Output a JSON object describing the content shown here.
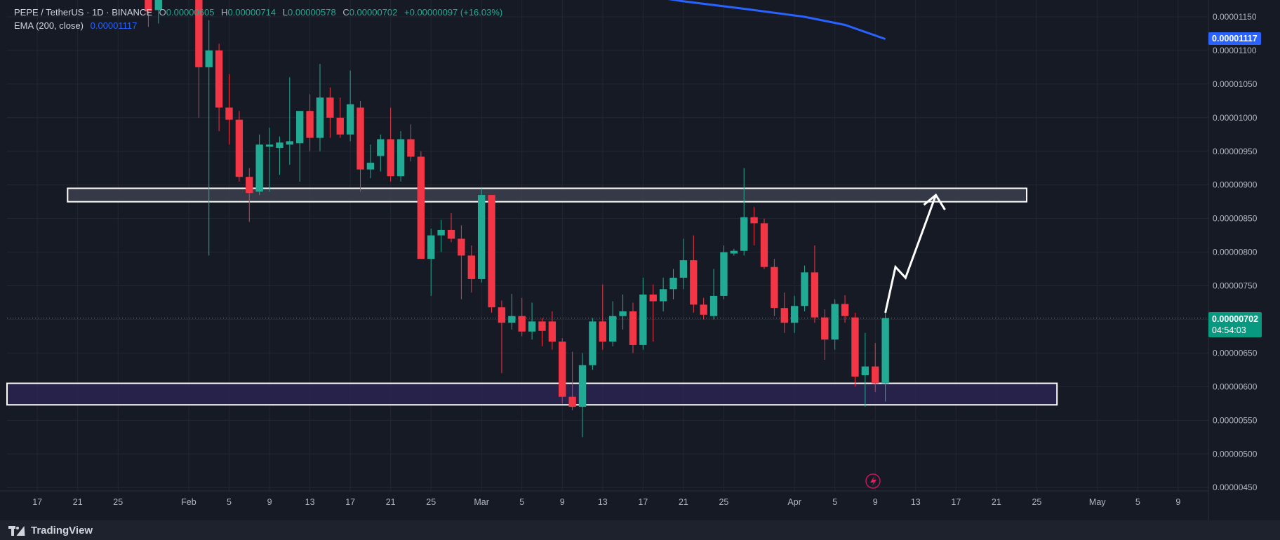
{
  "legend": {
    "symbol": "PEPE / TetherUS · 1D · BINANCE",
    "open_label": "O",
    "open_value": "0.00000605",
    "high_label": "H",
    "high_value": "0.00000714",
    "low_label": "L",
    "low_value": "0.00000578",
    "close_label": "C",
    "close_value": "0.00000702",
    "change_value": "+0.00000097 (+16.03%)",
    "ema_label": "EMA (200, close)",
    "ema_value": "0.00001117"
  },
  "price_tags": {
    "ema_tag": "0.00001117",
    "last_price_tag": "0.00000702",
    "countdown": "04:54:03"
  },
  "footer": {
    "brand": "TradingView"
  },
  "colors": {
    "background": "#161a25",
    "up": "#22ab94",
    "down": "#f23645",
    "ema": "#2962ff",
    "grid": "#232733",
    "zone_fill_upper": "#3c3f4e",
    "zone_fill_lower": "#2a2550",
    "projection": "#ffffff"
  },
  "chart_data": {
    "type": "candlestick",
    "title": "PEPE / TetherUS · 1D · BINANCE",
    "y_ticks": [
      "0.00001150",
      "0.00001100",
      "0.00001050",
      "0.00001000",
      "0.00000950",
      "0.00000900",
      "0.00000850",
      "0.00000800",
      "0.00000750",
      "0.00000700",
      "0.00000650",
      "0.00000600",
      "0.00000550",
      "0.00000500",
      "0.00000450"
    ],
    "x_ticks": [
      {
        "day": "2024-01-17",
        "label": "17"
      },
      {
        "day": "2024-01-21",
        "label": "21"
      },
      {
        "day": "2024-01-25",
        "label": "25"
      },
      {
        "day": "2024-02-01",
        "label": "Feb"
      },
      {
        "day": "2024-02-05",
        "label": "5"
      },
      {
        "day": "2024-02-09",
        "label": "9"
      },
      {
        "day": "2024-02-13",
        "label": "13"
      },
      {
        "day": "2024-02-17",
        "label": "17"
      },
      {
        "day": "2024-02-21",
        "label": "21"
      },
      {
        "day": "2024-02-25",
        "label": "25"
      },
      {
        "day": "2024-03-01",
        "label": "Mar"
      },
      {
        "day": "2024-03-05",
        "label": "5"
      },
      {
        "day": "2024-03-09",
        "label": "9"
      },
      {
        "day": "2024-03-13",
        "label": "13"
      },
      {
        "day": "2024-03-17",
        "label": "17"
      },
      {
        "day": "2024-03-21",
        "label": "21"
      },
      {
        "day": "2024-03-25",
        "label": "25"
      },
      {
        "day": "2024-04-01",
        "label": "Apr"
      },
      {
        "day": "2024-04-05",
        "label": "5"
      },
      {
        "day": "2024-04-09",
        "label": "9"
      },
      {
        "day": "2024-04-13",
        "label": "13"
      },
      {
        "day": "2024-04-17",
        "label": "17"
      },
      {
        "day": "2024-04-21",
        "label": "21"
      },
      {
        "day": "2024-04-25",
        "label": "25"
      },
      {
        "day": "2024-05-01",
        "label": "May"
      },
      {
        "day": "2024-05-05",
        "label": "5"
      },
      {
        "day": "2024-05-09",
        "label": "9"
      }
    ],
    "y_range": [
      4.45e-06,
      1.175e-05
    ],
    "x_range": [
      "2024-01-14",
      "2024-05-12"
    ],
    "candles": [
      {
        "day": "2024-01-28",
        "o": 1.185e-05,
        "h": 1.205e-05,
        "l": 1.135e-05,
        "c": 1.158e-05
      },
      {
        "day": "2024-01-29",
        "o": 1.16e-05,
        "h": 1.19e-05,
        "l": 1.14e-05,
        "c": 1.178e-05
      },
      {
        "day": "2024-02-02",
        "o": 1.18e-05,
        "h": 1.195e-05,
        "l": 1e-05,
        "c": 1.075e-05
      },
      {
        "day": "2024-02-03",
        "o": 1.075e-05,
        "h": 1.145e-05,
        "l": 7.95e-06,
        "c": 1.1e-05
      },
      {
        "day": "2024-02-04",
        "o": 1.1e-05,
        "h": 1.11e-05,
        "l": 9.8e-06,
        "c": 1.015e-05
      },
      {
        "day": "2024-02-05",
        "o": 1.015e-05,
        "h": 1.065e-05,
        "l": 9.6e-06,
        "c": 9.97e-06
      },
      {
        "day": "2024-02-06",
        "o": 9.97e-06,
        "h": 1.01e-05,
        "l": 9.05e-06,
        "c": 9.12e-06
      },
      {
        "day": "2024-02-07",
        "o": 9.12e-06,
        "h": 9.25e-06,
        "l": 8.45e-06,
        "c": 8.88e-06
      },
      {
        "day": "2024-02-08",
        "o": 8.9e-06,
        "h": 9.75e-06,
        "l": 8.85e-06,
        "c": 9.6e-06
      },
      {
        "day": "2024-02-09",
        "o": 9.57e-06,
        "h": 9.85e-06,
        "l": 8.9e-06,
        "c": 9.6e-06
      },
      {
        "day": "2024-02-10",
        "o": 9.55e-06,
        "h": 9.72e-06,
        "l": 9.15e-06,
        "c": 9.63e-06
      },
      {
        "day": "2024-02-11",
        "o": 9.6e-06,
        "h": 1.06e-05,
        "l": 9.3e-06,
        "c": 9.65e-06
      },
      {
        "day": "2024-02-12",
        "o": 9.62e-06,
        "h": 1.01e-05,
        "l": 9.05e-06,
        "c": 1.01e-05
      },
      {
        "day": "2024-02-13",
        "o": 1.01e-05,
        "h": 1.035e-05,
        "l": 9.5e-06,
        "c": 9.7e-06
      },
      {
        "day": "2024-02-14",
        "o": 9.7e-06,
        "h": 1.08e-05,
        "l": 9.5e-06,
        "c": 1.03e-05
      },
      {
        "day": "2024-02-15",
        "o": 1.03e-05,
        "h": 1.045e-05,
        "l": 9.7e-06,
        "c": 1e-05
      },
      {
        "day": "2024-02-16",
        "o": 1e-05,
        "h": 1.03e-05,
        "l": 9.7e-06,
        "c": 9.75e-06
      },
      {
        "day": "2024-02-17",
        "o": 9.75e-06,
        "h": 1.07e-05,
        "l": 9.65e-06,
        "c": 1.02e-05
      },
      {
        "day": "2024-02-18",
        "o": 1.015e-05,
        "h": 1.025e-05,
        "l": 8.9e-06,
        "c": 9.23e-06
      },
      {
        "day": "2024-02-19",
        "o": 9.23e-06,
        "h": 9.6e-06,
        "l": 9.1e-06,
        "c": 9.33e-06
      },
      {
        "day": "2024-02-20",
        "o": 9.43e-06,
        "h": 9.75e-06,
        "l": 9.2e-06,
        "c": 9.68e-06
      },
      {
        "day": "2024-02-21",
        "o": 9.68e-06,
        "h": 1.015e-05,
        "l": 9.05e-06,
        "c": 9.13e-06
      },
      {
        "day": "2024-02-22",
        "o": 9.13e-06,
        "h": 9.8e-06,
        "l": 9.05e-06,
        "c": 9.68e-06
      },
      {
        "day": "2024-02-23",
        "o": 9.68e-06,
        "h": 9.9e-06,
        "l": 9.35e-06,
        "c": 9.42e-06
      },
      {
        "day": "2024-02-24",
        "o": 9.42e-06,
        "h": 9.5e-06,
        "l": 7.9e-06,
        "c": 7.9e-06
      },
      {
        "day": "2024-02-25",
        "o": 7.9e-06,
        "h": 8.35e-06,
        "l": 7.35e-06,
        "c": 8.25e-06
      },
      {
        "day": "2024-02-26",
        "o": 8.25e-06,
        "h": 8.48e-06,
        "l": 8e-06,
        "c": 8.33e-06
      },
      {
        "day": "2024-02-27",
        "o": 8.33e-06,
        "h": 8.58e-06,
        "l": 8.15e-06,
        "c": 8.2e-06
      },
      {
        "day": "2024-02-28",
        "o": 8.2e-06,
        "h": 8.4e-06,
        "l": 7.3e-06,
        "c": 7.95e-06
      },
      {
        "day": "2024-02-29",
        "o": 7.95e-06,
        "h": 8.1e-06,
        "l": 7.4e-06,
        "c": 7.6e-06
      },
      {
        "day": "2024-03-01",
        "o": 7.6e-06,
        "h": 8.95e-06,
        "l": 7.55e-06,
        "c": 8.85e-06
      },
      {
        "day": "2024-03-02",
        "o": 8.85e-06,
        "h": 8.85e-06,
        "l": 7.1e-06,
        "c": 7.18e-06
      },
      {
        "day": "2024-03-03",
        "o": 7.18e-06,
        "h": 7.28e-06,
        "l": 6.2e-06,
        "c": 6.95e-06
      },
      {
        "day": "2024-03-04",
        "o": 6.95e-06,
        "h": 7.38e-06,
        "l": 6.85e-06,
        "c": 7.05e-06
      },
      {
        "day": "2024-03-05",
        "o": 7.05e-06,
        "h": 7.32e-06,
        "l": 6.75e-06,
        "c": 6.82e-06
      },
      {
        "day": "2024-03-06",
        "o": 6.82e-06,
        "h": 7.25e-06,
        "l": 6.7e-06,
        "c": 6.97e-06
      },
      {
        "day": "2024-03-07",
        "o": 6.97e-06,
        "h": 7.02e-06,
        "l": 6.6e-06,
        "c": 6.83e-06
      },
      {
        "day": "2024-03-08",
        "o": 6.97e-06,
        "h": 7.12e-06,
        "l": 6.55e-06,
        "c": 6.67e-06
      },
      {
        "day": "2024-03-09",
        "o": 6.67e-06,
        "h": 6.72e-06,
        "l": 5.75e-06,
        "c": 5.85e-06
      },
      {
        "day": "2024-03-10",
        "o": 5.85e-06,
        "h": 6.52e-06,
        "l": 5.65e-06,
        "c": 5.7e-06
      },
      {
        "day": "2024-03-11",
        "o": 5.7e-06,
        "h": 6.5e-06,
        "l": 5.25e-06,
        "c": 6.32e-06
      },
      {
        "day": "2024-03-12",
        "o": 6.32e-06,
        "h": 7.02e-06,
        "l": 6.25e-06,
        "c": 6.97e-06
      },
      {
        "day": "2024-03-13",
        "o": 6.97e-06,
        "h": 7.52e-06,
        "l": 6.55e-06,
        "c": 6.67e-06
      },
      {
        "day": "2024-03-14",
        "o": 6.67e-06,
        "h": 7.27e-06,
        "l": 6.6e-06,
        "c": 7.05e-06
      },
      {
        "day": "2024-03-15",
        "o": 7.05e-06,
        "h": 7.37e-06,
        "l": 6.85e-06,
        "c": 7.12e-06
      },
      {
        "day": "2024-03-16",
        "o": 7.12e-06,
        "h": 7.25e-06,
        "l": 6.5e-06,
        "c": 6.62e-06
      },
      {
        "day": "2024-03-17",
        "o": 6.62e-06,
        "h": 7.62e-06,
        "l": 6.55e-06,
        "c": 7.37e-06
      },
      {
        "day": "2024-03-18",
        "o": 7.37e-06,
        "h": 7.52e-06,
        "l": 6.67e-06,
        "c": 7.27e-06
      },
      {
        "day": "2024-03-19",
        "o": 7.27e-06,
        "h": 7.62e-06,
        "l": 7.12e-06,
        "c": 7.45e-06
      },
      {
        "day": "2024-03-20",
        "o": 7.45e-06,
        "h": 7.75e-06,
        "l": 7.3e-06,
        "c": 7.62e-06
      },
      {
        "day": "2024-03-21",
        "o": 7.62e-06,
        "h": 8.2e-06,
        "l": 7.45e-06,
        "c": 7.88e-06
      },
      {
        "day": "2024-03-22",
        "o": 7.88e-06,
        "h": 8.25e-06,
        "l": 7.1e-06,
        "c": 7.22e-06
      },
      {
        "day": "2024-03-23",
        "o": 7.22e-06,
        "h": 7.32e-06,
        "l": 7e-06,
        "c": 7.07e-06
      },
      {
        "day": "2024-03-24",
        "o": 7.05e-06,
        "h": 7.75e-06,
        "l": 7e-06,
        "c": 7.35e-06
      },
      {
        "day": "2024-03-25",
        "o": 7.35e-06,
        "h": 8.1e-06,
        "l": 7.3e-06,
        "c": 8e-06
      },
      {
        "day": "2024-03-26",
        "o": 7.98e-06,
        "h": 8.05e-06,
        "l": 7.95e-06,
        "c": 8.02e-06
      },
      {
        "day": "2024-03-27",
        "o": 8.02e-06,
        "h": 9.25e-06,
        "l": 7.95e-06,
        "c": 8.52e-06
      },
      {
        "day": "2024-03-28",
        "o": 8.52e-06,
        "h": 8.67e-06,
        "l": 8.1e-06,
        "c": 8.43e-06
      },
      {
        "day": "2024-03-29",
        "o": 8.43e-06,
        "h": 8.5e-06,
        "l": 7.75e-06,
        "c": 7.78e-06
      },
      {
        "day": "2024-03-30",
        "o": 7.78e-06,
        "h": 7.9e-06,
        "l": 7.05e-06,
        "c": 7.17e-06
      },
      {
        "day": "2024-03-31",
        "o": 7.17e-06,
        "h": 7.4e-06,
        "l": 6.8e-06,
        "c": 6.95e-06
      },
      {
        "day": "2024-04-01",
        "o": 6.95e-06,
        "h": 7.35e-06,
        "l": 6.8e-06,
        "c": 7.2e-06
      },
      {
        "day": "2024-04-02",
        "o": 7.2e-06,
        "h": 7.8e-06,
        "l": 7.12e-06,
        "c": 7.7e-06
      },
      {
        "day": "2024-04-03",
        "o": 7.7e-06,
        "h": 8.1e-06,
        "l": 6.95e-06,
        "c": 7.03e-06
      },
      {
        "day": "2024-04-04",
        "o": 7.03e-06,
        "h": 7.15e-06,
        "l": 6.4e-06,
        "c": 6.7e-06
      },
      {
        "day": "2024-04-05",
        "o": 6.7e-06,
        "h": 7.3e-06,
        "l": 6.55e-06,
        "c": 7.23e-06
      },
      {
        "day": "2024-04-06",
        "o": 7.23e-06,
        "h": 7.36e-06,
        "l": 6.95e-06,
        "c": 7.05e-06
      },
      {
        "day": "2024-04-07",
        "o": 7.03e-06,
        "h": 7.1e-06,
        "l": 6e-06,
        "c": 6.15e-06
      },
      {
        "day": "2024-04-08",
        "o": 6.17e-06,
        "h": 6.8e-06,
        "l": 5.7e-06,
        "c": 6.3e-06
      },
      {
        "day": "2024-04-09",
        "o": 6.3e-06,
        "h": 6.65e-06,
        "l": 5.92e-06,
        "c": 6.05e-06
      },
      {
        "day": "2024-04-10",
        "o": 6.05e-06,
        "h": 7.14e-06,
        "l": 5.78e-06,
        "c": 7.02e-06
      }
    ],
    "ema_200": [
      {
        "day": "2024-03-09",
        "v": 1.2e-05
      },
      {
        "day": "2024-03-15",
        "v": 1.187e-05
      },
      {
        "day": "2024-03-21",
        "v": 1.173e-05
      },
      {
        "day": "2024-03-27",
        "v": 1.162e-05
      },
      {
        "day": "2024-04-02",
        "v": 1.15e-05
      },
      {
        "day": "2024-04-06",
        "v": 1.138e-05
      },
      {
        "day": "2024-04-10",
        "v": 1.117e-05
      }
    ],
    "zones": [
      {
        "name": "resistance",
        "from_day": "2024-01-20",
        "to_day": "2024-04-24",
        "y_top": 8.95e-06,
        "y_bottom": 8.75e-06
      },
      {
        "name": "support",
        "from_day": "2024-01-14",
        "to_day": "2024-04-27",
        "y_top": 6.05e-06,
        "y_bottom": 5.73e-06
      }
    ],
    "projection": [
      {
        "day": "2024-04-10",
        "v": 7.1e-06
      },
      {
        "day": "2024-04-11",
        "v": 7.78e-06
      },
      {
        "day": "2024-04-12",
        "v": 7.62e-06
      },
      {
        "day": "2024-04-15",
        "v": 8.85e-06
      }
    ],
    "last_price": 7.02e-06
  }
}
